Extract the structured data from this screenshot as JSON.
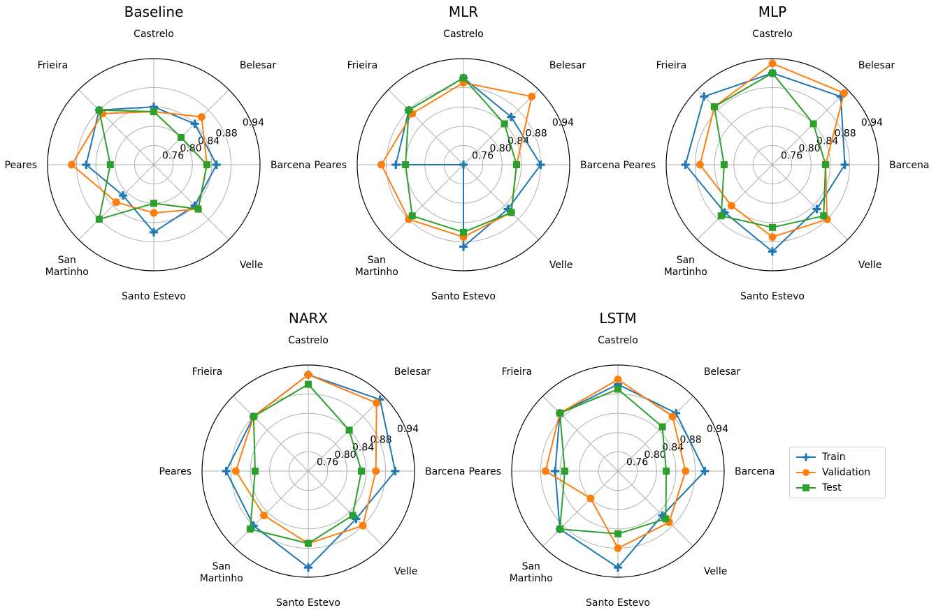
{
  "chart_data": {
    "type": "radar",
    "categories": [
      "Barcena",
      "Belesar",
      "Castrelo",
      "Frieira",
      "Peares",
      "San\nMartinho",
      "Santo Estevo",
      "Velle"
    ],
    "r_ticks": [
      "0.76",
      "0.80",
      "0.84",
      "0.88",
      "0.94"
    ],
    "rlim": [
      0.72,
      0.94
    ],
    "grid": true,
    "legend_position": "right",
    "series_styles": [
      {
        "name": "Train",
        "color": "#1f77b4",
        "marker": "plus"
      },
      {
        "name": "Validation",
        "color": "#ff7f0e",
        "marker": "circle"
      },
      {
        "name": "Test",
        "color": "#2ca02c",
        "marker": "square"
      }
    ],
    "subplots": [
      {
        "title": "Baseline",
        "series": [
          {
            "name": "Train",
            "values": [
              0.85,
              0.84,
              0.84,
              0.88,
              0.86,
              0.81,
              0.86,
              0.84
            ]
          },
          {
            "name": "Validation",
            "values": [
              0.83,
              0.86,
              0.83,
              0.87,
              0.89,
              0.83,
              0.82,
              0.85
            ]
          },
          {
            "name": "Test",
            "values": [
              0.83,
              0.8,
              0.83,
              0.88,
              0.81,
              0.88,
              0.8,
              0.85
            ]
          }
        ]
      },
      {
        "title": "MLR",
        "series": [
          {
            "name": "Train",
            "values": [
              0.88,
              0.86,
              0.9,
              0.88,
              0.86,
              0.72,
              0.89,
              0.85
            ]
          },
          {
            "name": "Validation",
            "values": [
              0.83,
              0.92,
              0.89,
              0.87,
              0.89,
              0.88,
              0.87,
              0.86
            ]
          },
          {
            "name": "Test",
            "values": [
              0.83,
              0.84,
              0.9,
              0.88,
              0.84,
              0.87,
              0.86,
              0.86
            ]
          }
        ]
      },
      {
        "title": "MLP",
        "series": [
          {
            "name": "Train",
            "values": [
              0.87,
              0.92,
              0.91,
              0.92,
              0.9,
              0.86,
              0.9,
              0.85
            ]
          },
          {
            "name": "Validation",
            "values": [
              0.83,
              0.93,
              0.93,
              0.89,
              0.87,
              0.84,
              0.87,
              0.88
            ]
          },
          {
            "name": "Test",
            "values": [
              0.83,
              0.84,
              0.91,
              0.89,
              0.82,
              0.87,
              0.85,
              0.87
            ]
          }
        ]
      },
      {
        "title": "NARX",
        "series": [
          {
            "name": "Train",
            "values": [
              0.9,
              0.93,
              0.92,
              0.88,
              0.89,
              0.88,
              0.92,
              0.86
            ]
          },
          {
            "name": "Validation",
            "values": [
              0.86,
              0.92,
              0.92,
              0.88,
              0.87,
              0.85,
              0.87,
              0.88
            ]
          },
          {
            "name": "Test",
            "values": [
              0.83,
              0.84,
              0.9,
              0.88,
              0.83,
              0.89,
              0.87,
              0.85
            ]
          }
        ]
      },
      {
        "title": "LSTM",
        "series": [
          {
            "name": "Train",
            "values": [
              0.9,
              0.89,
              0.9,
              0.89,
              0.85,
              0.89,
              0.92,
              0.85
            ]
          },
          {
            "name": "Validation",
            "values": [
              0.86,
              0.88,
              0.91,
              0.89,
              0.87,
              0.8,
              0.88,
              0.87
            ]
          },
          {
            "name": "Test",
            "values": [
              0.82,
              0.85,
              0.89,
              0.89,
              0.83,
              0.89,
              0.85,
              0.86
            ]
          }
        ]
      }
    ]
  }
}
